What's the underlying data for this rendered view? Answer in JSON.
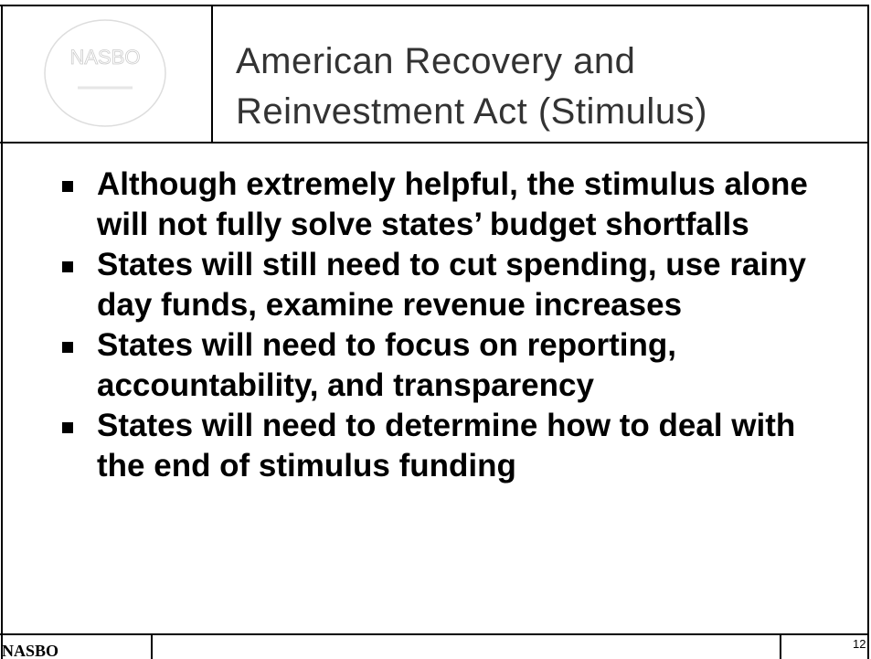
{
  "logo": "NASBO",
  "title": [
    "American Recovery and",
    "Reinvestment Act (Stimulus)"
  ],
  "bullets": [
    "Although extremely helpful, the stimulus alone will not fully solve states’ budget shortfalls",
    "States will still need to cut spending, use rainy day funds, examine revenue increases",
    "States will need to focus on reporting, accountability, and transparency",
    "States will need to determine how to deal with the end of stimulus funding"
  ],
  "footer": {
    "left": "NASBO",
    "page": "12"
  }
}
